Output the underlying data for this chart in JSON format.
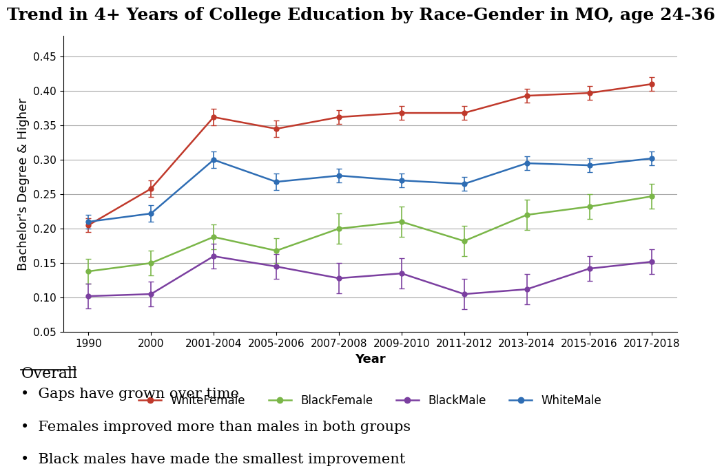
{
  "title": "Trend in 4+ Years of College Education by Race-Gender in MO, age 24-36",
  "xlabel": "Year",
  "ylabel": "Bachelor's Degree & Higher",
  "x_labels": [
    "1990",
    "2000",
    "2001-2004",
    "2005-2006",
    "2007-2008",
    "2009-2010",
    "2011-2012",
    "2013-2014",
    "2015-2016",
    "2017-2018"
  ],
  "series": {
    "WhiteFemale": {
      "values": [
        0.205,
        0.258,
        0.362,
        0.345,
        0.362,
        0.368,
        0.368,
        0.393,
        0.397,
        0.41
      ],
      "errors": [
        0.01,
        0.012,
        0.012,
        0.012,
        0.01,
        0.01,
        0.01,
        0.01,
        0.01,
        0.01
      ],
      "color": "#c0392b",
      "marker": "o"
    },
    "BlackFemale": {
      "values": [
        0.138,
        0.15,
        0.188,
        0.168,
        0.2,
        0.21,
        0.182,
        0.22,
        0.232,
        0.247
      ],
      "errors": [
        0.018,
        0.018,
        0.018,
        0.018,
        0.022,
        0.022,
        0.022,
        0.022,
        0.018,
        0.018
      ],
      "color": "#7ab648",
      "marker": "o"
    },
    "BlackMale": {
      "values": [
        0.102,
        0.105,
        0.16,
        0.145,
        0.128,
        0.135,
        0.105,
        0.112,
        0.142,
        0.152
      ],
      "errors": [
        0.018,
        0.018,
        0.018,
        0.018,
        0.022,
        0.022,
        0.022,
        0.022,
        0.018,
        0.018
      ],
      "color": "#7b3fa0",
      "marker": "o"
    },
    "WhiteMale": {
      "values": [
        0.21,
        0.222,
        0.3,
        0.268,
        0.277,
        0.27,
        0.265,
        0.295,
        0.292,
        0.302
      ],
      "errors": [
        0.01,
        0.012,
        0.012,
        0.012,
        0.01,
        0.01,
        0.01,
        0.01,
        0.01,
        0.01
      ],
      "color": "#2e6db4",
      "marker": "o"
    }
  },
  "ylim": [
    0.05,
    0.48
  ],
  "yticks": [
    0.05,
    0.1,
    0.15,
    0.2,
    0.25,
    0.3,
    0.35,
    0.4,
    0.45
  ],
  "legend_order": [
    "WhiteFemale",
    "BlackFemale",
    "BlackMale",
    "WhiteMale"
  ],
  "overall_heading": "Overall",
  "bullets": [
    "Gaps have grown over time",
    "Females improved more than males in both groups",
    "Black males have made the smallest improvement"
  ],
  "background_color": "#ffffff",
  "title_fontsize": 18,
  "axis_fontsize": 13,
  "tick_fontsize": 11,
  "legend_fontsize": 12
}
